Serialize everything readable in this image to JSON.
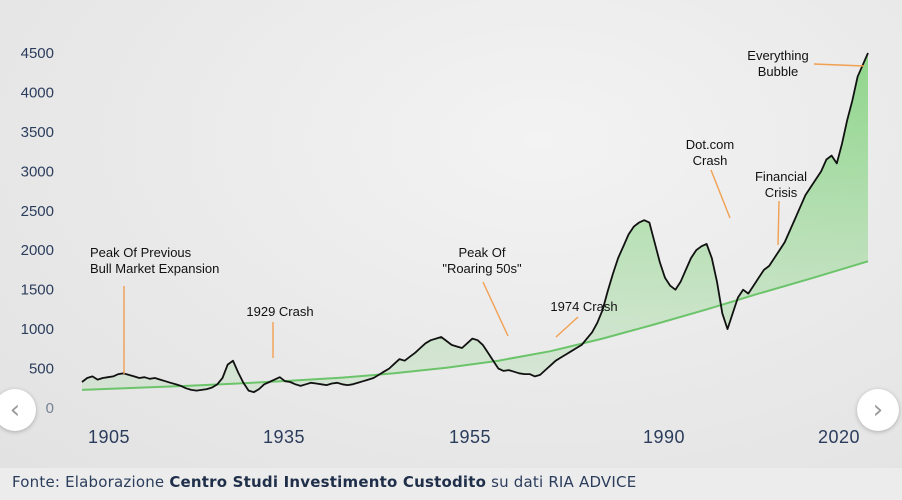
{
  "caption": {
    "prefix": "Fonte: Elaborazione ",
    "bold": "Centro Studi Investimento Custodito",
    "suffix": " su dati RIA ADVICE"
  },
  "navigation": {
    "prev_icon": "‹",
    "next_icon": "›"
  },
  "colors": {
    "price_line": "#111111",
    "trend_line": "#6cc46a",
    "fill": "#7fd27a",
    "annotation_line": "#f0a050",
    "axis_text": "#2b3d5c"
  },
  "chart_data": {
    "type": "line",
    "title": "",
    "xlabel": "",
    "ylabel": "",
    "ylim": [
      0,
      4500
    ],
    "y_ticks": [
      "0",
      "500",
      "1000",
      "1500",
      "2000",
      "2500",
      "3000",
      "3500",
      "4000",
      "4500"
    ],
    "x_ticks": [
      "1905",
      "1935",
      "1955",
      "1990",
      "2020"
    ],
    "grid": false,
    "series": [
      {
        "name": "",
        "points": [
          [
            0,
            330
          ],
          [
            2,
            380
          ],
          [
            4,
            400
          ],
          [
            6,
            360
          ],
          [
            8,
            380
          ],
          [
            10,
            390
          ],
          [
            12,
            400
          ],
          [
            14,
            430
          ],
          [
            16,
            440
          ],
          [
            18,
            420
          ],
          [
            20,
            400
          ],
          [
            22,
            380
          ],
          [
            24,
            390
          ],
          [
            26,
            370
          ],
          [
            28,
            380
          ],
          [
            30,
            360
          ],
          [
            32,
            340
          ],
          [
            34,
            320
          ],
          [
            36,
            300
          ],
          [
            38,
            280
          ],
          [
            40,
            250
          ],
          [
            42,
            230
          ],
          [
            44,
            220
          ],
          [
            46,
            230
          ],
          [
            48,
            240
          ],
          [
            50,
            260
          ],
          [
            52,
            300
          ],
          [
            54,
            380
          ],
          [
            56,
            550
          ],
          [
            58,
            600
          ],
          [
            60,
            450
          ],
          [
            62,
            320
          ],
          [
            64,
            220
          ],
          [
            66,
            200
          ],
          [
            68,
            240
          ],
          [
            70,
            300
          ],
          [
            72,
            330
          ],
          [
            74,
            360
          ],
          [
            76,
            390
          ],
          [
            78,
            340
          ],
          [
            80,
            330
          ],
          [
            82,
            300
          ],
          [
            84,
            280
          ],
          [
            86,
            300
          ],
          [
            88,
            320
          ],
          [
            90,
            310
          ],
          [
            92,
            300
          ],
          [
            94,
            290
          ],
          [
            96,
            310
          ],
          [
            98,
            320
          ],
          [
            100,
            300
          ],
          [
            102,
            290
          ],
          [
            104,
            300
          ],
          [
            106,
            320
          ],
          [
            108,
            340
          ],
          [
            110,
            360
          ],
          [
            112,
            380
          ],
          [
            114,
            420
          ],
          [
            116,
            460
          ],
          [
            118,
            500
          ],
          [
            120,
            560
          ],
          [
            122,
            620
          ],
          [
            124,
            600
          ],
          [
            126,
            650
          ],
          [
            128,
            700
          ],
          [
            130,
            760
          ],
          [
            132,
            820
          ],
          [
            134,
            860
          ],
          [
            136,
            880
          ],
          [
            138,
            900
          ],
          [
            140,
            850
          ],
          [
            142,
            800
          ],
          [
            144,
            780
          ],
          [
            146,
            760
          ],
          [
            148,
            820
          ],
          [
            150,
            880
          ],
          [
            152,
            860
          ],
          [
            154,
            800
          ],
          [
            156,
            700
          ],
          [
            158,
            600
          ],
          [
            160,
            500
          ],
          [
            162,
            470
          ],
          [
            164,
            480
          ],
          [
            166,
            460
          ],
          [
            168,
            440
          ],
          [
            170,
            430
          ],
          [
            172,
            430
          ],
          [
            174,
            400
          ],
          [
            176,
            420
          ],
          [
            178,
            480
          ],
          [
            180,
            540
          ],
          [
            182,
            600
          ],
          [
            184,
            640
          ],
          [
            186,
            680
          ],
          [
            188,
            720
          ],
          [
            190,
            760
          ],
          [
            192,
            800
          ],
          [
            194,
            880
          ],
          [
            196,
            960
          ],
          [
            198,
            1080
          ],
          [
            200,
            1240
          ],
          [
            202,
            1480
          ],
          [
            204,
            1700
          ],
          [
            206,
            1900
          ],
          [
            208,
            2050
          ],
          [
            210,
            2200
          ],
          [
            212,
            2300
          ],
          [
            214,
            2350
          ],
          [
            216,
            2380
          ],
          [
            218,
            2350
          ],
          [
            220,
            2100
          ],
          [
            222,
            1850
          ],
          [
            224,
            1650
          ],
          [
            226,
            1550
          ],
          [
            228,
            1500
          ],
          [
            230,
            1600
          ],
          [
            232,
            1750
          ],
          [
            234,
            1900
          ],
          [
            236,
            2000
          ],
          [
            238,
            2050
          ],
          [
            240,
            2080
          ],
          [
            242,
            1900
          ],
          [
            244,
            1600
          ],
          [
            246,
            1200
          ],
          [
            248,
            1000
          ],
          [
            250,
            1200
          ],
          [
            252,
            1400
          ],
          [
            254,
            1500
          ],
          [
            256,
            1450
          ],
          [
            258,
            1550
          ],
          [
            260,
            1650
          ],
          [
            262,
            1750
          ],
          [
            264,
            1800
          ],
          [
            266,
            1900
          ],
          [
            268,
            2000
          ],
          [
            270,
            2100
          ],
          [
            272,
            2250
          ],
          [
            274,
            2400
          ],
          [
            276,
            2550
          ],
          [
            278,
            2700
          ],
          [
            280,
            2800
          ],
          [
            282,
            2900
          ],
          [
            284,
            3000
          ],
          [
            286,
            3150
          ],
          [
            288,
            3200
          ],
          [
            290,
            3100
          ],
          [
            292,
            3350
          ],
          [
            294,
            3650
          ],
          [
            296,
            3900
          ],
          [
            298,
            4200
          ],
          [
            300,
            4350
          ],
          [
            302,
            4500
          ]
        ]
      },
      {
        "name": "",
        "points": [
          [
            0,
            230
          ],
          [
            20,
            255
          ],
          [
            40,
            280
          ],
          [
            60,
            310
          ],
          [
            80,
            345
          ],
          [
            100,
            385
          ],
          [
            120,
            440
          ],
          [
            140,
            510
          ],
          [
            160,
            600
          ],
          [
            180,
            720
          ],
          [
            200,
            880
          ],
          [
            220,
            1060
          ],
          [
            240,
            1250
          ],
          [
            260,
            1450
          ],
          [
            280,
            1640
          ],
          [
            302,
            1860
          ]
        ]
      }
    ],
    "annotations": [
      {
        "label": "Peak Of Previous\nBull Market Expansion"
      },
      {
        "label": "1929 Crash"
      },
      {
        "label": "Peak Of\n\"Roaring 50s\""
      },
      {
        "label": "1974 Crash"
      },
      {
        "label": "Dot.com\nCrash"
      },
      {
        "label": "Financial\nCrisis"
      },
      {
        "label": "Everything\nBubble"
      }
    ]
  }
}
